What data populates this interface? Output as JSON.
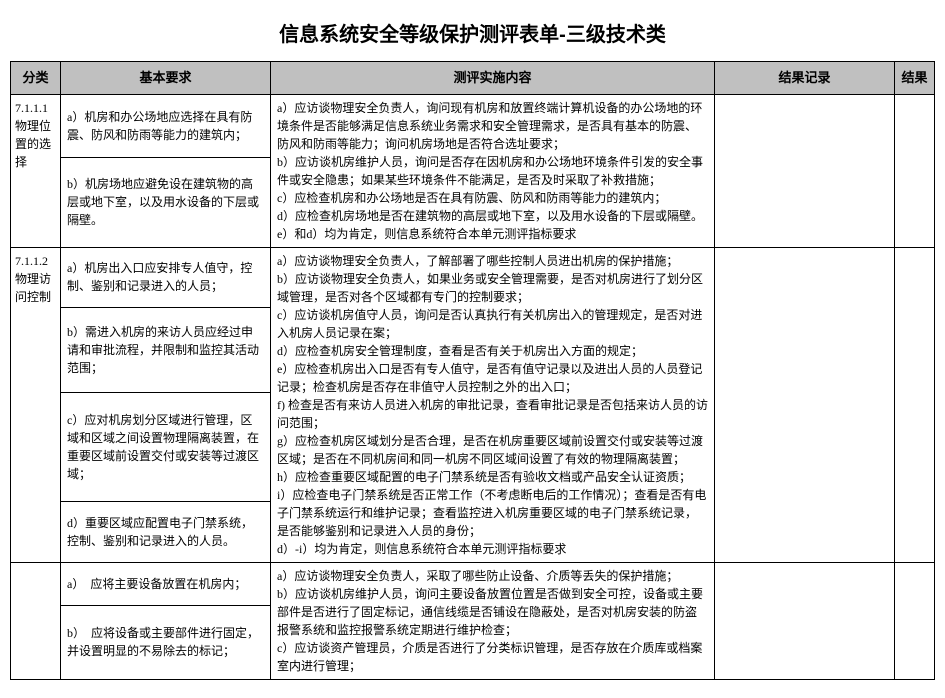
{
  "document_title": "信息系统安全等级保护测评表单-三级技术类",
  "headers": {
    "category": "分类",
    "requirement": "基本要求",
    "implementation": "测评实施内容",
    "record": "结果记录",
    "result": "结果"
  },
  "row1": {
    "category": "7.1.1.1\n物理位置的选择",
    "req_a": "a）机房和办公场地应选择在具有防震、防风和防雨等能力的建筑内；",
    "req_b": "b）机房场地应避免设在建筑物的高层或地下室，以及用水设备的下层或隔壁。",
    "impl": "a）应访谈物理安全负责人，询问现有机房和放置终端计算机设备的办公场地的环境条件是否能够满足信息系统业务需求和安全管理需求，是否具有基本的防震、防风和防雨等能力；询问机房场地是否符合选址要求；\nb）应访谈机房维护人员，询问是否存在因机房和办公场地环境条件引发的安全事件或安全隐患；如果某些环境条件不能满足，是否及时采取了补救措施；\nc）应检查机房和办公场地是否在具有防震、防风和防雨等能力的建筑内；\nd）应检查机房场地是否在建筑物的高层或地下室，以及用水设备的下层或隔壁。\ne）和d）均为肯定，则信息系统符合本单元测评指标要求"
  },
  "row2": {
    "category": "7.1.1.2\n物理访问控制",
    "req_a": "a）机房出入口应安排专人值守，控制、鉴别和记录进入的人员；",
    "req_b": "b）需进入机房的来访人员应经过申请和审批流程，并限制和监控其活动范围；",
    "req_c": "c）应对机房划分区域进行管理，区域和区域之间设置物理隔离装置，在重要区域前设置交付或安装等过渡区域；",
    "req_d": "d）重要区域应配置电子门禁系统，控制、鉴别和记录进入的人员。",
    "impl": "a）应访谈物理安全负责人，了解部署了哪些控制人员进出机房的保护措施；\nb）应访谈物理安全负责人，如果业务或安全管理需要，是否对机房进行了划分区域管理，是否对各个区域都有专门的控制要求；\nc）应访谈机房值守人员，询问是否认真执行有关机房出入的管理规定，是否对进入机房人员记录在案；\nd）应检查机房安全管理制度，查看是否有关于机房出入方面的规定；\ne）应检查机房出入口是否有专人值守，是否有值守记录以及进出人员的人员登记记录；检查机房是否存在非值守人员控制之外的出入口；\nf) 检查是否有来访人员进入机房的审批记录，查看审批记录是否包括来访人员的访问范围；\ng）应检查机房区域划分是否合理，是否在机房重要区域前设置交付或安装等过渡区域；是否在不同机房间和同一机房不同区域间设置了有效的物理隔离装置；\nh）应检查重要区域配置的电子门禁系统是否有验收文档或产品安全认证资质；\ni）应检查电子门禁系统是否正常工作（不考虑断电后的工作情况）；查看是否有电子门禁系统运行和维护记录；查看监控进入机房重要区域的电子门禁系统记录，是否能够鉴别和记录进入人员的身份；\nd）-i）均为肯定，则信息系统符合本单元测评指标要求"
  },
  "row3": {
    "req_a": "a）　应将主要设备放置在机房内；",
    "req_b": "b）　应将设备或主要部件进行固定，并设置明显的不易除去的标记；",
    "impl": "a）应访谈物理安全负责人，采取了哪些防止设备、介质等丢失的保护措施；\nb）应访谈机房维护人员，询问主要设备放置位置是否做到安全可控，设备或主要部件是否进行了固定标记，通信线缆是否铺设在隐蔽处，是否对机房安装的防盗报警系统和监控报警系统定期进行维护检查；\nc）应访谈资产管理员，介质是否进行了分类标识管理，是否存放在介质库或档案室内进行管理；"
  },
  "style": {
    "header_bg": "#c0c0c0",
    "border_color": "#000000",
    "text_color": "#000000",
    "background_color": "#ffffff",
    "title_fontsize": 20,
    "body_fontsize": 12,
    "line_height": 1.5
  }
}
